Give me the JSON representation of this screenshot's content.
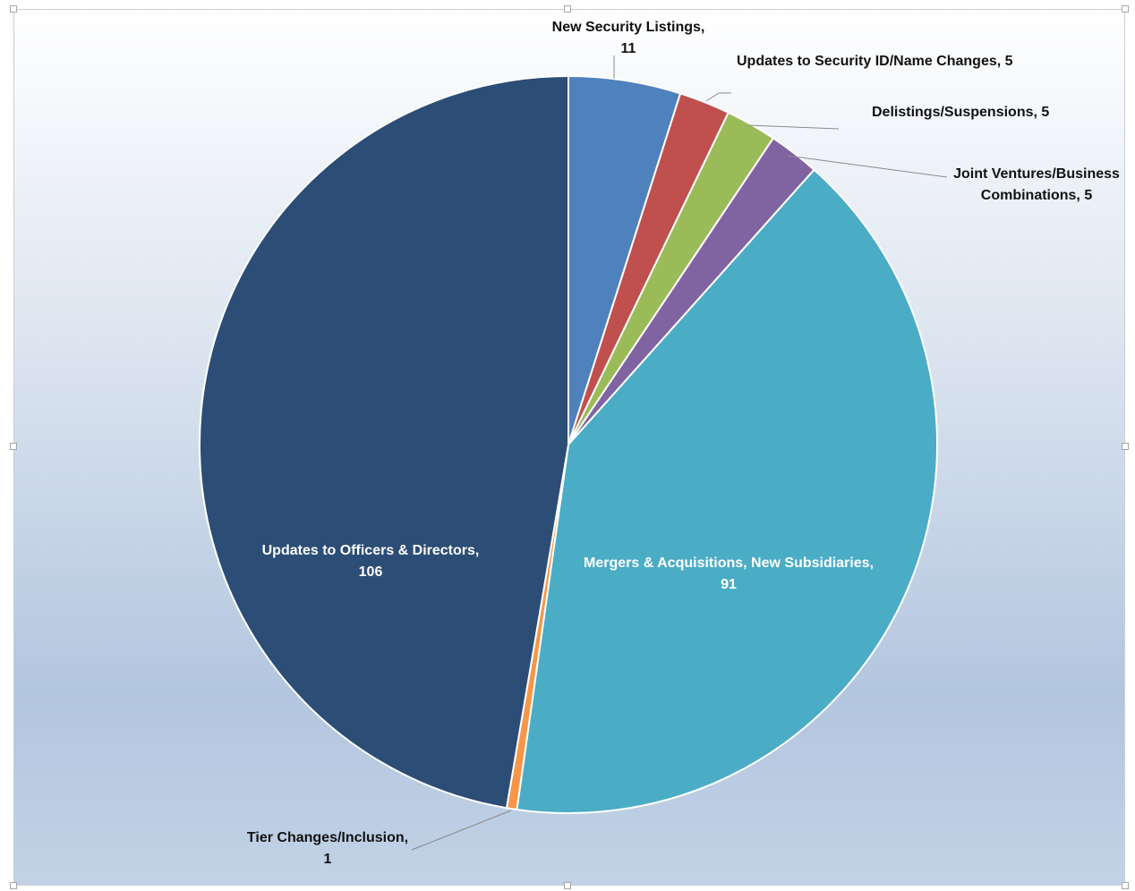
{
  "chart_data": {
    "type": "pie",
    "title": "",
    "slices": [
      {
        "name": "New Security Listings",
        "value": 11,
        "color": "#4f81bd",
        "label": [
          "New Security Listings,",
          "11"
        ]
      },
      {
        "name": "Updates to Security ID/Name Changes",
        "value": 5,
        "color": "#c0504d",
        "label": [
          "Updates to Security ID/Name Changes, 5"
        ]
      },
      {
        "name": "Delistings/Suspensions",
        "value": 5,
        "color": "#9bbb59",
        "label": [
          "Delistings/Suspensions, 5"
        ]
      },
      {
        "name": "Joint Ventures/Business Combinations",
        "value": 5,
        "color": "#8064a2",
        "label": [
          "Joint Ventures/Business",
          "Combinations, 5"
        ]
      },
      {
        "name": "Mergers & Acquisitions, New Subsidiaries",
        "value": 91,
        "color": "#4bacc6",
        "label": [
          "Mergers & Acquisitions, New Subsidiaries,",
          "91"
        ]
      },
      {
        "name": "Tier Changes/Inclusion",
        "value": 1,
        "color": "#f79646",
        "label": [
          "Tier Changes/Inclusion,",
          "1"
        ]
      },
      {
        "name": "Updates to Officers & Directors",
        "value": 106,
        "color": "#2c4d75",
        "label": [
          "Updates to Officers & Directors,",
          "106"
        ]
      }
    ],
    "legend": "none",
    "data_labels": "category name and value"
  }
}
